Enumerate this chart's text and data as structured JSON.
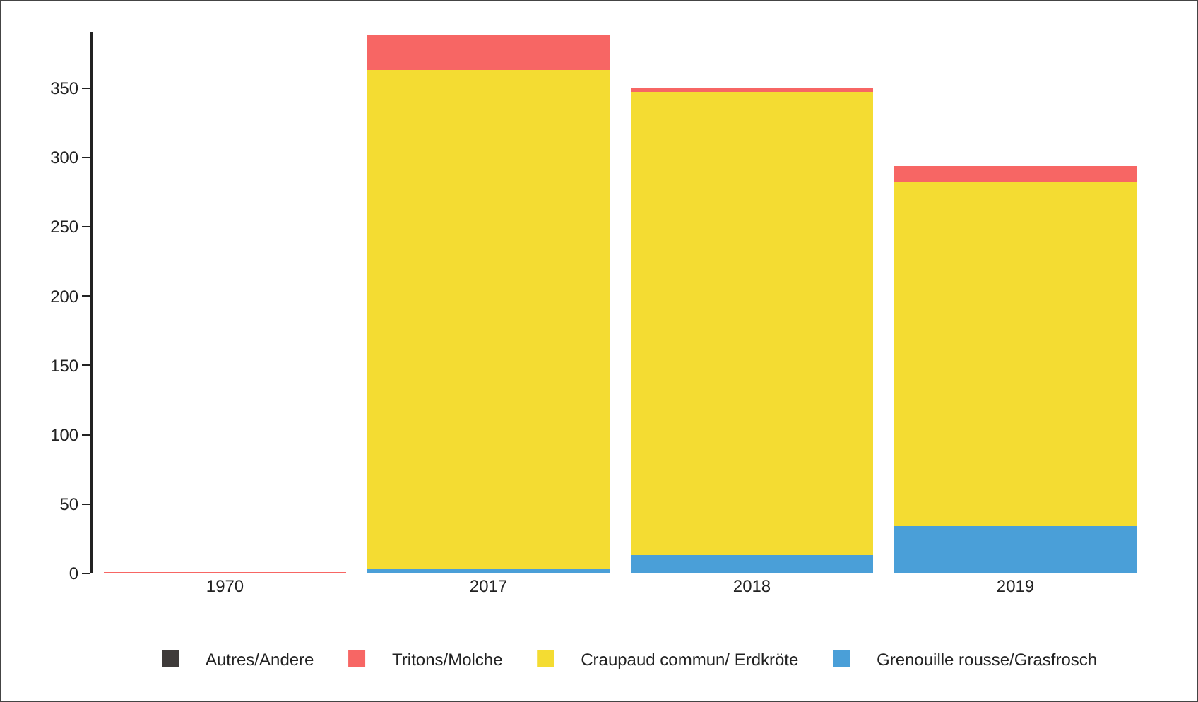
{
  "chart_data": {
    "type": "bar",
    "stacked": true,
    "categories": [
      "1970",
      "2017",
      "2018",
      "2019"
    ],
    "series": [
      {
        "name": "Grenouille rousse/Grasfrosch",
        "color": "#4a9fd8",
        "values": [
          0,
          3,
          13,
          34
        ]
      },
      {
        "name": "Craupaud commun/ Erdkröte",
        "color": "#f4dc32",
        "values": [
          0,
          360,
          334,
          248
        ]
      },
      {
        "name": "Tritons/Molche",
        "color": "#f76664",
        "values": [
          1,
          25,
          3,
          12
        ]
      },
      {
        "name": "Autres/Andere",
        "color": "#3f3b3a",
        "values": [
          0,
          0,
          0,
          0
        ]
      }
    ],
    "ylim": [
      0,
      390
    ],
    "yticks": [
      0,
      50,
      100,
      150,
      200,
      250,
      300,
      350
    ],
    "grid": false,
    "legend": "bottom"
  }
}
